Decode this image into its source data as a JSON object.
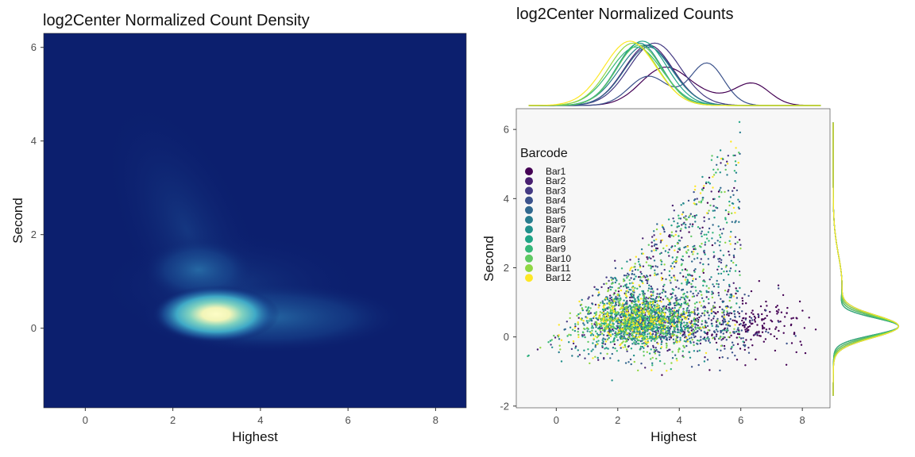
{
  "chart_data": [
    {
      "type": "heatmap",
      "title": "log2Center Normalized Count Density",
      "xlabel": "Highest",
      "ylabel": "Second",
      "xlim": [
        -0.95,
        8.7
      ],
      "ylim": [
        -1.7,
        6.3
      ],
      "x_ticks": [
        0,
        2,
        4,
        6,
        8
      ],
      "y_ticks": [
        0,
        2,
        4,
        6
      ],
      "grid": false,
      "colors": {
        "low": "#0c1f6e",
        "mid1": "#1e5fa0",
        "mid2": "#3fb5c4",
        "high": "#fdfdc6"
      },
      "density_peaks": [
        {
          "x": 2.9,
          "y": 0.3,
          "weight": 1.0
        },
        {
          "x": 4.2,
          "y": 0.2,
          "weight": 0.25
        },
        {
          "x": 2.6,
          "y": 1.2,
          "weight": 0.18
        }
      ]
    },
    {
      "type": "scatter",
      "title": "log2Center Normalized Counts",
      "xlabel": "Highest",
      "ylabel": "Second",
      "xlim": [
        -1.3,
        8.9
      ],
      "ylim": [
        -2.05,
        6.6
      ],
      "x_ticks": [
        0,
        2,
        4,
        6,
        8
      ],
      "y_ticks": [
        -2,
        0,
        2,
        4,
        6
      ],
      "grid": false,
      "legend": {
        "title": "Barcode",
        "position": "top-left"
      },
      "series": [
        {
          "name": "Bar1",
          "color": "#440154",
          "x_mode": 6.4,
          "y_mode": 0.3
        },
        {
          "name": "Bar2",
          "color": "#481f70",
          "x_mode": 3.0,
          "y_mode": 0.3
        },
        {
          "name": "Bar3",
          "color": "#443a83",
          "x_mode": 3.2,
          "y_mode": 0.3
        },
        {
          "name": "Bar4",
          "color": "#3b528b",
          "x_mode": 4.9,
          "y_mode": 0.3
        },
        {
          "name": "Bar5",
          "color": "#31688e",
          "x_mode": 3.0,
          "y_mode": 0.3
        },
        {
          "name": "Bar6",
          "color": "#287c8e",
          "x_mode": 2.9,
          "y_mode": 0.3
        },
        {
          "name": "Bar7",
          "color": "#21908c",
          "x_mode": 2.7,
          "y_mode": 0.3
        },
        {
          "name": "Bar8",
          "color": "#20a486",
          "x_mode": 2.8,
          "y_mode": 0.3
        },
        {
          "name": "Bar9",
          "color": "#35b779",
          "x_mode": 2.6,
          "y_mode": 0.3
        },
        {
          "name": "Bar10",
          "color": "#5ec962",
          "x_mode": 2.7,
          "y_mode": 0.3
        },
        {
          "name": "Bar11",
          "color": "#90d743",
          "x_mode": 2.5,
          "y_mode": 0.3
        },
        {
          "name": "Bar12",
          "color": "#fde725",
          "x_mode": 2.4,
          "y_mode": 0.3
        }
      ]
    }
  ]
}
